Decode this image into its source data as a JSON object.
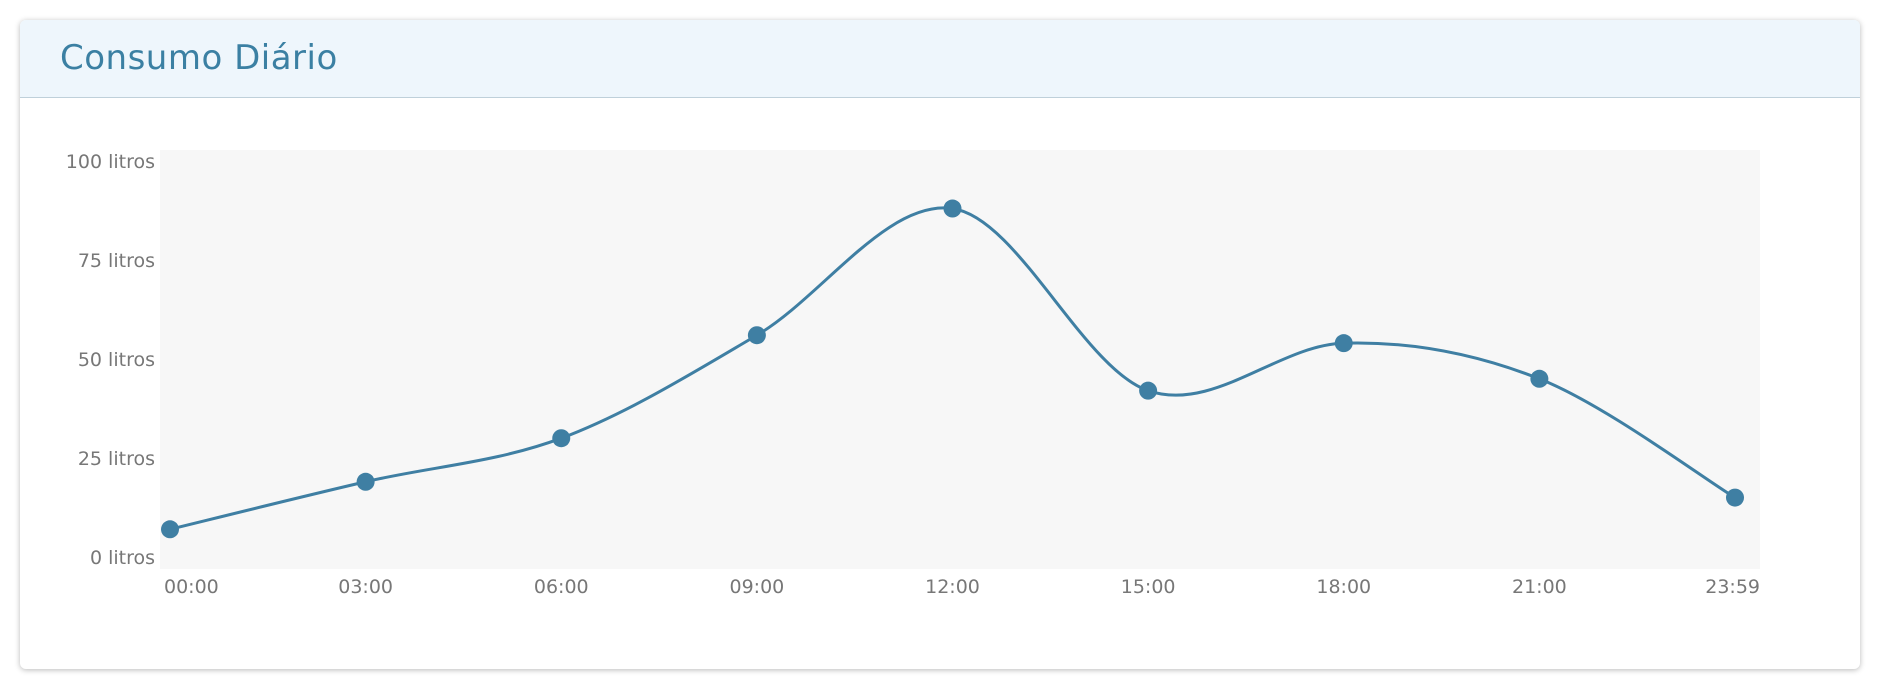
{
  "panel": {
    "title": "Consumo Diário"
  },
  "colors": {
    "accent": "#3b80a3",
    "line": "#3f7fa3",
    "plot_background": "#f7f7f7",
    "header_background": "#eef6fc",
    "tick_text": "#777777"
  },
  "chart_data": {
    "type": "line",
    "title": "",
    "xlabel": "",
    "ylabel": "",
    "categories": [
      "00:00",
      "03:00",
      "06:00",
      "09:00",
      "12:00",
      "15:00",
      "18:00",
      "21:00",
      "23:59"
    ],
    "series": [
      {
        "values": [
          7,
          19,
          30,
          56,
          88,
          42,
          54,
          45,
          15
        ]
      }
    ],
    "y_ticks": [
      {
        "value": 0,
        "label": "0 litros"
      },
      {
        "value": 25,
        "label": "25 litros"
      },
      {
        "value": 50,
        "label": "50 litros"
      },
      {
        "value": 75,
        "label": "75 litros"
      },
      {
        "value": 100,
        "label": "100 litros"
      }
    ],
    "ylim": [
      0,
      100
    ],
    "grid": false,
    "smooth": true,
    "markers": true,
    "legend": "none"
  }
}
